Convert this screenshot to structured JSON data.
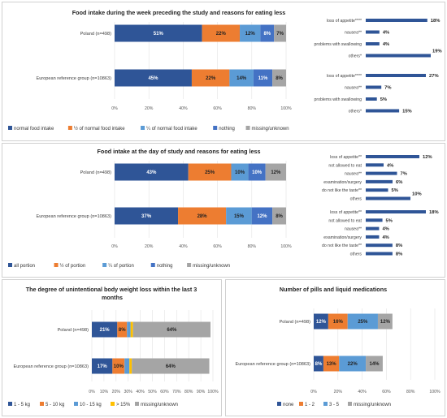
{
  "colors": {
    "dark_blue": "#2f5597",
    "orange": "#ed7d31",
    "light_blue": "#5b9bd5",
    "mid_blue": "#4472c4",
    "gray": "#a5a5a5",
    "reason_bar": "#2f5597"
  },
  "chart_data": [
    {
      "id": "food_week",
      "type": "bar",
      "orientation": "horizontal",
      "stacked": true,
      "title": "Food intake during the week preceding the study and reasons for eating less",
      "categories": [
        "Poland (n=498)",
        "European reference group (n=10863)"
      ],
      "series": [
        {
          "name": "normal food intake",
          "color": "#2f5597",
          "values": [
            51,
            45
          ]
        },
        {
          "name": "½ of normal food intake",
          "color": "#ed7d31",
          "values": [
            22,
            22
          ]
        },
        {
          "name": "¼ of normal food intake",
          "color": "#5b9bd5",
          "values": [
            12,
            14
          ]
        },
        {
          "name": "nothing",
          "color": "#4472c4",
          "values": [
            8,
            11
          ]
        },
        {
          "name": "missing/unknown",
          "color": "#a5a5a5",
          "values": [
            7,
            8
          ]
        }
      ],
      "xlim": [
        0,
        100
      ],
      "ticks": [
        "0%",
        "20%",
        "40%",
        "60%",
        "80%",
        "100%"
      ],
      "legend": "bottom",
      "grid": true
    },
    {
      "id": "reasons_week_poland",
      "type": "bar",
      "orientation": "horizontal",
      "categories": [
        "loss of appetite****",
        "nausea**",
        "problems with swallowing",
        "others*"
      ],
      "values": [
        18,
        4,
        4,
        19
      ],
      "labels": [
        "18%",
        "4%",
        "4%",
        "19%"
      ]
    },
    {
      "id": "reasons_week_europe",
      "type": "bar",
      "orientation": "horizontal",
      "categories": [
        "loss of appetite****",
        "nausea**",
        "problems with swallowing",
        "others*"
      ],
      "values": [
        27,
        7,
        5,
        15
      ],
      "labels": [
        "27%",
        "7%",
        "5%",
        "15%"
      ]
    },
    {
      "id": "food_day",
      "type": "bar",
      "orientation": "horizontal",
      "stacked": true,
      "title": "Food intake at the day of study and reasons for eating less",
      "categories": [
        "Poland (n=498)",
        "European reference group (n=10863)"
      ],
      "series": [
        {
          "name": "all portion",
          "color": "#2f5597",
          "values": [
            43,
            37
          ]
        },
        {
          "name": "½ of portion",
          "color": "#ed7d31",
          "values": [
            25,
            28
          ]
        },
        {
          "name": "¼ of portion",
          "color": "#5b9bd5",
          "values": [
            10,
            15
          ]
        },
        {
          "name": "nothing",
          "color": "#4472c4",
          "values": [
            10,
            12
          ]
        },
        {
          "name": "missing/unknown",
          "color": "#a5a5a5",
          "values": [
            12,
            8
          ]
        }
      ],
      "xlim": [
        0,
        100
      ],
      "ticks": [
        "0%",
        "20%",
        "40%",
        "60%",
        "80%",
        "100%"
      ],
      "legend": "bottom",
      "grid": true
    },
    {
      "id": "reasons_day_poland",
      "type": "bar",
      "orientation": "horizontal",
      "categories": [
        "loss of appetite**",
        "not allowed to eat",
        "nausea**",
        "examination/surgery",
        "do not like the taste**",
        "others"
      ],
      "values": [
        12,
        4,
        7,
        6,
        5,
        10
      ],
      "labels": [
        "12%",
        "4%",
        "7%",
        "6%",
        "5%",
        "10%"
      ]
    },
    {
      "id": "reasons_day_europe",
      "type": "bar",
      "orientation": "horizontal",
      "categories": [
        "loss of appetite**",
        "not allowed to eat",
        "nausea**",
        "examination/surgery",
        "do not like the taste**",
        "others"
      ],
      "values": [
        18,
        5,
        4,
        4,
        8,
        8
      ],
      "labels": [
        "18%",
        "5%",
        "4%",
        "4%",
        "8%",
        "8%"
      ]
    },
    {
      "id": "weight_loss",
      "type": "bar",
      "orientation": "horizontal",
      "stacked": true,
      "title": "The degree of unintentional body weight loss within the last 3 months",
      "categories": [
        "Poland (n=498)",
        "European reference group (n=10863)"
      ],
      "series": [
        {
          "name": "1 - 5 kg",
          "color": "#2f5597",
          "values": [
            21,
            17
          ]
        },
        {
          "name": "5 - 10 kg",
          "color": "#ed7d31",
          "values": [
            8,
            10
          ]
        },
        {
          "name": "10 - 15 kg",
          "color": "#5b9bd5",
          "values": [
            3,
            4
          ]
        },
        {
          "name": "> 15%",
          "color": "#ffc000",
          "values": [
            2,
            2
          ]
        },
        {
          "name": "missing/unknown",
          "color": "#a5a5a5",
          "values": [
            64,
            64
          ]
        }
      ],
      "point_labels": [
        [
          "21%",
          "8%",
          "",
          "",
          "64%"
        ],
        [
          "17%",
          "10%",
          "",
          "",
          "64%"
        ]
      ],
      "xlim": [
        0,
        100
      ],
      "ticks": [
        "0%",
        "10%",
        "20%",
        "30%",
        "40%",
        "50%",
        "60%",
        "70%",
        "80%",
        "90%",
        "100%"
      ],
      "legend": "bottom",
      "grid": true
    },
    {
      "id": "pills",
      "type": "bar",
      "orientation": "horizontal",
      "stacked": true,
      "title": "Number of pills and liquid medications",
      "categories": [
        "Poland (n=498)",
        "European reference group (n=10863)"
      ],
      "series": [
        {
          "name": "none",
          "color": "#2f5597",
          "values": [
            12,
            8
          ]
        },
        {
          "name": "1 - 2",
          "color": "#ed7d31",
          "values": [
            16,
            13
          ]
        },
        {
          "name": "3 - 5",
          "color": "#5b9bd5",
          "values": [
            25,
            22
          ]
        },
        {
          "name": "missing/unknown",
          "color": "#a5a5a5",
          "values": [
            12,
            14
          ]
        }
      ],
      "xlim": [
        0,
        100
      ],
      "ticks": [
        "0%",
        "20%",
        "40%",
        "60%",
        "80%",
        "100%"
      ],
      "legend": "bottom",
      "grid": true
    }
  ]
}
